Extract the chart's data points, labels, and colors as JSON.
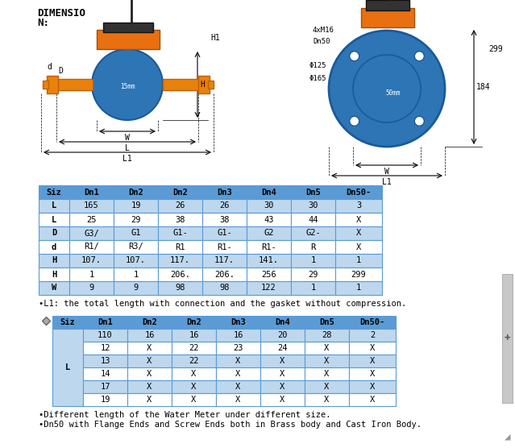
{
  "title_line1": "DIMENSIO",
  "title_line2": "N:",
  "table1_headers": [
    "Siz",
    "Dn1",
    "Dn2",
    "Dn2",
    "Dn3",
    "Dn4",
    "Dn5",
    "Dn50-"
  ],
  "table1_rows": [
    [
      "L",
      "165",
      "19",
      "26",
      "26",
      "30",
      "30",
      "3"
    ],
    [
      "L",
      "25",
      "29",
      "38",
      "38",
      "43",
      "44",
      "X"
    ],
    [
      "D",
      "G3/",
      "G1",
      "G1-",
      "G1-",
      "G2",
      "G2-",
      "X"
    ],
    [
      "d",
      "R1/",
      "R3/",
      "R1",
      "R1-",
      "R1-",
      "R",
      "X"
    ],
    [
      "H",
      "107.",
      "107.",
      "117.",
      "117.",
      "141.",
      "1",
      "1"
    ],
    [
      "H",
      "1",
      "1",
      "206.",
      "206.",
      "256",
      "29",
      "299"
    ],
    [
      "W",
      "9",
      "9",
      "98",
      "98",
      "122",
      "1",
      "1"
    ]
  ],
  "note1": "•L1: the total length with connection and the gasket without compression.",
  "table2_headers": [
    "Siz",
    "Dn1",
    "Dn2",
    "Dn2",
    "Dn3",
    "Dn4",
    "Dn5",
    "Dn50-"
  ],
  "table2_col1": "L",
  "table2_rows": [
    [
      "110",
      "16",
      "16",
      "16",
      "20",
      "28",
      "2"
    ],
    [
      "12",
      "X",
      "22",
      "23",
      "24",
      "X",
      "X"
    ],
    [
      "13",
      "X",
      "22",
      "X",
      "X",
      "X",
      "X"
    ],
    [
      "14",
      "X",
      "X",
      "X",
      "X",
      "X",
      "X"
    ],
    [
      "17",
      "X",
      "X",
      "X",
      "X",
      "X",
      "X"
    ],
    [
      "19",
      "X",
      "X",
      "X",
      "X",
      "X",
      "X"
    ]
  ],
  "note2_line1": "•Different length of the Water Meter under different size.",
  "note2_line2": "•Dn50 with Flange Ends and Screw Ends both in Brass body and Cast Iron Body.",
  "header_bg": "#5B9BD5",
  "row_bg_light": "#BDD7EE",
  "row_bg_white": "#FFFFFF",
  "border_color": "#5B9BD5",
  "body_blue": "#2E75B6",
  "body_blue_dark": "#1A5A9A",
  "pipe_orange": "#E8820A",
  "pipe_orange_dark": "#C06000",
  "register_orange": "#E87010",
  "antenna_color": "#222222"
}
